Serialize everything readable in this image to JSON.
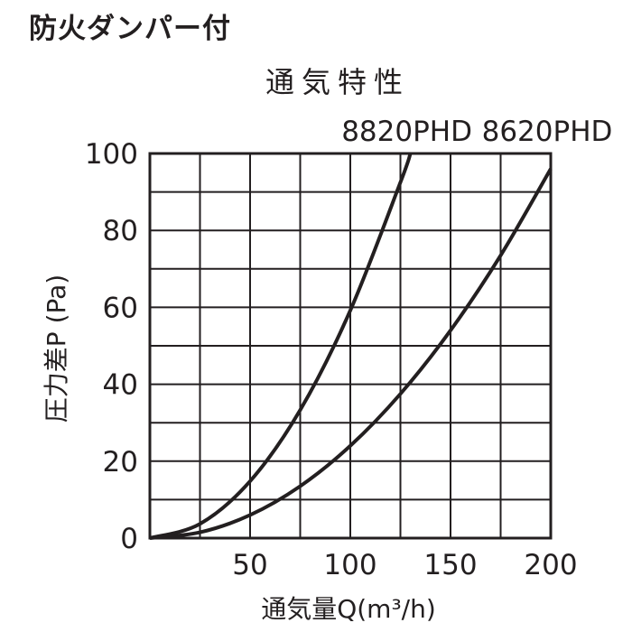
{
  "header": {
    "title": "防火ダンパー付"
  },
  "chart_data": {
    "type": "line",
    "title": "通気特性",
    "xlabel": "通気量Q(m³/h)",
    "ylabel": "圧力差P (Pa)",
    "xlim": [
      0,
      200
    ],
    "ylim": [
      0,
      100
    ],
    "xticks": [
      50,
      100,
      150,
      200
    ],
    "yticks": [
      0,
      20,
      40,
      60,
      80,
      100
    ],
    "x_grid_step": 25,
    "y_grid_step": 10,
    "grid": true,
    "legend": "labels above curves",
    "series": [
      {
        "name": "8820PHD",
        "x": [
          0,
          25,
          50,
          75,
          100,
          125,
          130
        ],
        "y": [
          0,
          3.7,
          14.8,
          33.3,
          59.2,
          92.5,
          100
        ]
      },
      {
        "name": "8620PHD",
        "x": [
          0,
          25,
          50,
          75,
          100,
          125,
          150,
          175,
          200
        ],
        "y": [
          0,
          1.5,
          6,
          13.5,
          24,
          37.5,
          54,
          73.5,
          96
        ]
      }
    ]
  }
}
